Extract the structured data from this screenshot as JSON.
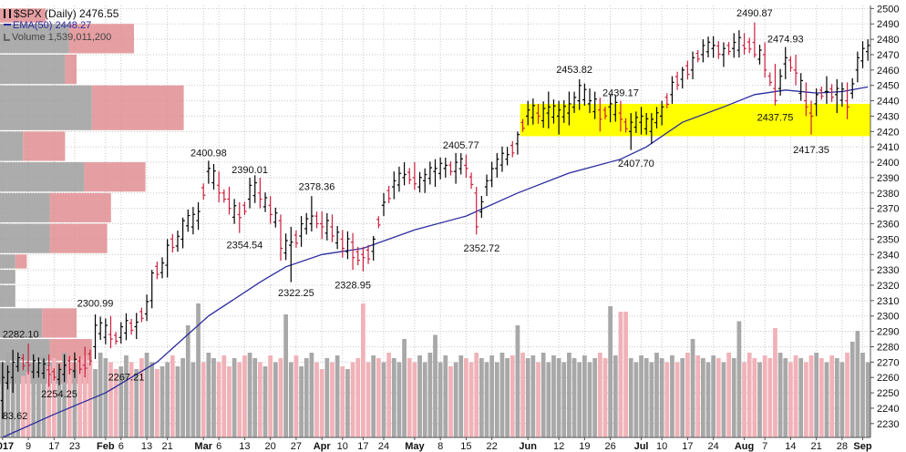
{
  "header": {
    "symbol_line": "$SPX (Daily) 2476.55",
    "ema_line": "EMA(50) 2448.27",
    "volume_line": "Volume 1,539,011,200"
  },
  "colors": {
    "up": "#000000",
    "down": "#cc1e3c",
    "ema": "#2b2b9f",
    "vol_up": "#a8a8a8",
    "vol_down": "#f0b2b8",
    "vbp_gray": "#9e9e9e",
    "vbp_red": "#e08e92",
    "highlight": "#ffff00",
    "grid": "#c8c8c8"
  },
  "chart_data": {
    "type": "candlestick",
    "title": "$SPX (Daily) 2476.55",
    "y_axis": {
      "side": "right",
      "ylim": [
        2221,
        2502
      ],
      "ticks": [
        2230,
        2240,
        2250,
        2260,
        2270,
        2280,
        2290,
        2300,
        2310,
        2320,
        2330,
        2340,
        2350,
        2360,
        2370,
        2380,
        2390,
        2400,
        2410,
        2420,
        2430,
        2440,
        2450,
        2460,
        2470,
        2480,
        2490,
        2500
      ]
    },
    "x_axis": {
      "tick_labels": [
        {
          "label": "2017",
          "i": 0,
          "month": true
        },
        {
          "label": "9",
          "i": 5,
          "month": false
        },
        {
          "label": "17",
          "i": 10,
          "month": false
        },
        {
          "label": "23",
          "i": 14,
          "month": false
        },
        {
          "label": "Feb",
          "i": 20,
          "month": true
        },
        {
          "label": "6",
          "i": 23,
          "month": false
        },
        {
          "label": "13",
          "i": 28,
          "month": false
        },
        {
          "label": "21",
          "i": 32,
          "month": false
        },
        {
          "label": "Mar",
          "i": 39,
          "month": true
        },
        {
          "label": "6",
          "i": 42,
          "month": false
        },
        {
          "label": "13",
          "i": 47,
          "month": false
        },
        {
          "label": "20",
          "i": 52,
          "month": false
        },
        {
          "label": "27",
          "i": 57,
          "month": false
        },
        {
          "label": "Apr",
          "i": 62,
          "month": true
        },
        {
          "label": "10",
          "i": 66,
          "month": false
        },
        {
          "label": "17",
          "i": 70,
          "month": false
        },
        {
          "label": "24",
          "i": 74,
          "month": false
        },
        {
          "label": "May",
          "i": 80,
          "month": true
        },
        {
          "label": "8",
          "i": 85,
          "month": false
        },
        {
          "label": "15",
          "i": 90,
          "month": false
        },
        {
          "label": "22",
          "i": 95,
          "month": false
        },
        {
          "label": "Jun",
          "i": 102,
          "month": true
        },
        {
          "label": "12",
          "i": 108,
          "month": false
        },
        {
          "label": "19",
          "i": 113,
          "month": false
        },
        {
          "label": "26",
          "i": 118,
          "month": false
        },
        {
          "label": "Jul",
          "i": 124,
          "month": true
        },
        {
          "label": "10",
          "i": 128,
          "month": false
        },
        {
          "label": "17",
          "i": 133,
          "month": false
        },
        {
          "label": "24",
          "i": 138,
          "month": false
        },
        {
          "label": "Aug",
          "i": 144,
          "month": true
        },
        {
          "label": "7",
          "i": 148,
          "month": false
        },
        {
          "label": "14",
          "i": 153,
          "month": false
        },
        {
          "label": "21",
          "i": 158,
          "month": false
        },
        {
          "label": "28",
          "i": 163,
          "month": false
        },
        {
          "label": "Sep",
          "i": 167,
          "month": true
        }
      ]
    },
    "bars_count": 169,
    "anchors": [
      [
        0,
        2245,
        2270,
        2233,
        2260
      ],
      [
        2,
        2260,
        2278,
        2250,
        2270
      ],
      [
        5,
        2270,
        2282,
        2262,
        2268
      ],
      [
        9,
        2265,
        2275,
        2254,
        2262
      ],
      [
        12,
        2262,
        2275,
        2257,
        2268
      ],
      [
        16,
        2268,
        2280,
        2260,
        2266
      ],
      [
        18,
        2280,
        2301,
        2272,
        2294
      ],
      [
        21,
        2288,
        2300,
        2279,
        2285
      ],
      [
        23,
        2286,
        2296,
        2282,
        2293
      ],
      [
        26,
        2293,
        2302,
        2285,
        2296
      ],
      [
        29,
        2310,
        2330,
        2305,
        2328
      ],
      [
        32,
        2333,
        2350,
        2325,
        2346
      ],
      [
        35,
        2350,
        2364,
        2344,
        2362
      ],
      [
        38,
        2362,
        2374,
        2356,
        2368
      ],
      [
        40,
        2394,
        2401,
        2386,
        2396
      ],
      [
        42,
        2385,
        2394,
        2374,
        2380
      ],
      [
        44,
        2376,
        2384,
        2366,
        2370
      ],
      [
        46,
        2366,
        2374,
        2354,
        2364
      ],
      [
        48,
        2376,
        2390,
        2370,
        2385
      ],
      [
        50,
        2380,
        2390,
        2370,
        2376
      ],
      [
        52,
        2372,
        2378,
        2360,
        2366
      ],
      [
        54,
        2362,
        2366,
        2336,
        2344
      ],
      [
        56,
        2346,
        2358,
        2322,
        2348
      ],
      [
        58,
        2352,
        2365,
        2345,
        2360
      ],
      [
        60,
        2360,
        2378,
        2355,
        2365
      ],
      [
        62,
        2360,
        2368,
        2350,
        2358
      ],
      [
        64,
        2358,
        2366,
        2348,
        2352
      ],
      [
        66,
        2350,
        2356,
        2338,
        2344
      ],
      [
        68,
        2348,
        2354,
        2330,
        2338
      ],
      [
        70,
        2340,
        2345,
        2329,
        2338
      ],
      [
        72,
        2342,
        2352,
        2336,
        2350
      ],
      [
        74,
        2372,
        2380,
        2365,
        2374
      ],
      [
        76,
        2384,
        2394,
        2376,
        2388
      ],
      [
        78,
        2390,
        2400,
        2385,
        2392
      ],
      [
        80,
        2390,
        2400,
        2382,
        2386
      ],
      [
        82,
        2388,
        2396,
        2380,
        2392
      ],
      [
        84,
        2394,
        2402,
        2384,
        2396
      ],
      [
        86,
        2396,
        2403,
        2390,
        2398
      ],
      [
        88,
        2394,
        2406,
        2386,
        2400
      ],
      [
        90,
        2398,
        2405,
        2390,
        2396
      ],
      [
        92,
        2380,
        2384,
        2353,
        2358
      ],
      [
        94,
        2384,
        2392,
        2378,
        2388
      ],
      [
        96,
        2396,
        2406,
        2390,
        2402
      ],
      [
        98,
        2402,
        2410,
        2398,
        2405
      ],
      [
        100,
        2412,
        2420,
        2405,
        2418
      ],
      [
        102,
        2430,
        2440,
        2424,
        2434
      ],
      [
        104,
        2432,
        2438,
        2425,
        2430
      ],
      [
        106,
        2432,
        2446,
        2422,
        2436
      ],
      [
        108,
        2430,
        2440,
        2418,
        2434
      ],
      [
        110,
        2432,
        2446,
        2424,
        2438
      ],
      [
        112,
        2440,
        2454,
        2434,
        2450
      ],
      [
        114,
        2438,
        2448,
        2432,
        2440
      ],
      [
        116,
        2434,
        2442,
        2420,
        2428
      ],
      [
        118,
        2436,
        2444,
        2426,
        2438
      ],
      [
        120,
        2432,
        2440,
        2420,
        2428
      ],
      [
        122,
        2420,
        2432,
        2408,
        2426
      ],
      [
        124,
        2426,
        2436,
        2418,
        2430
      ],
      [
        126,
        2420,
        2432,
        2412,
        2428
      ],
      [
        128,
        2430,
        2440,
        2424,
        2436
      ],
      [
        130,
        2444,
        2456,
        2438,
        2452
      ],
      [
        132,
        2454,
        2462,
        2448,
        2460
      ],
      [
        134,
        2460,
        2472,
        2454,
        2468
      ],
      [
        136,
        2470,
        2480,
        2465,
        2476
      ],
      [
        138,
        2474,
        2482,
        2468,
        2476
      ],
      [
        140,
        2470,
        2478,
        2462,
        2474
      ],
      [
        142,
        2474,
        2484,
        2468,
        2478
      ],
      [
        144,
        2476,
        2484,
        2470,
        2474
      ],
      [
        146,
        2478,
        2491,
        2468,
        2470
      ],
      [
        148,
        2470,
        2478,
        2455,
        2460
      ],
      [
        150,
        2448,
        2464,
        2437,
        2440
      ],
      [
        152,
        2464,
        2475,
        2454,
        2468
      ],
      [
        154,
        2460,
        2470,
        2450,
        2458
      ],
      [
        156,
        2440,
        2452,
        2430,
        2436
      ],
      [
        157,
        2432,
        2440,
        2418,
        2430
      ],
      [
        158,
        2438,
        2448,
        2430,
        2444
      ],
      [
        160,
        2446,
        2456,
        2438,
        2446
      ],
      [
        162,
        2444,
        2454,
        2432,
        2448
      ],
      [
        164,
        2440,
        2452,
        2428,
        2436
      ],
      [
        166,
        2460,
        2472,
        2452,
        2468
      ],
      [
        168,
        2472,
        2480,
        2466,
        2476
      ]
    ],
    "ema": [
      [
        0,
        2221
      ],
      [
        10,
        2236
      ],
      [
        20,
        2250
      ],
      [
        30,
        2270
      ],
      [
        40,
        2300
      ],
      [
        50,
        2322
      ],
      [
        55,
        2332
      ],
      [
        62,
        2340
      ],
      [
        70,
        2344
      ],
      [
        80,
        2356
      ],
      [
        90,
        2365
      ],
      [
        100,
        2380
      ],
      [
        110,
        2393
      ],
      [
        120,
        2402
      ],
      [
        125,
        2410
      ],
      [
        132,
        2426
      ],
      [
        140,
        2436
      ],
      [
        146,
        2444
      ],
      [
        152,
        2447
      ],
      [
        158,
        2445
      ],
      [
        163,
        2446
      ],
      [
        168,
        2449
      ]
    ],
    "volume": {
      "values": [
        0.55,
        0.62,
        0.5,
        0.58,
        0.45,
        0.48,
        0.55,
        0.5,
        0.6,
        0.52,
        0.58,
        0.5,
        0.62,
        0.55,
        0.5,
        0.58,
        0.6,
        0.55,
        0.5,
        0.62,
        0.58,
        0.55,
        0.5,
        0.52,
        0.6,
        0.55,
        0.5,
        0.58,
        0.62,
        0.55,
        0.5,
        0.52,
        0.55,
        0.6,
        0.52,
        0.58,
        0.6,
        0.55,
        0.5,
        0.55,
        0.62,
        0.58,
        0.55,
        0.6,
        0.52,
        0.58,
        0.55,
        0.6,
        0.62,
        0.58,
        0.55,
        0.52,
        0.6,
        0.55,
        0.58,
        0.5,
        0.55,
        0.6,
        0.52,
        0.58,
        0.62,
        0.55,
        0.5,
        0.58,
        0.55,
        0.6,
        0.52,
        0.5,
        0.55,
        0.58,
        0.52,
        0.55,
        0.6,
        0.58,
        0.55,
        0.62,
        0.58,
        0.55,
        0.72,
        0.58,
        0.55,
        0.6,
        0.55,
        0.62,
        0.58,
        0.55,
        0.6,
        0.52,
        0.55,
        0.6,
        0.58,
        0.55,
        0.62,
        0.58,
        0.55,
        0.6,
        0.55,
        0.62,
        0.58,
        0.6,
        0.55,
        0.62,
        0.58,
        0.6,
        0.55,
        0.62,
        0.55,
        0.6,
        0.58,
        0.55,
        0.62,
        0.58,
        0.55,
        0.6,
        0.55,
        0.58,
        0.62,
        0.58,
        0.55,
        0.6,
        0.92,
        0.65,
        0.58,
        0.55,
        0.6,
        0.58,
        0.55,
        0.62,
        0.58,
        0.55,
        0.6,
        0.55,
        0.58,
        0.62,
        0.55,
        0.6,
        0.58,
        0.55,
        0.6,
        0.58,
        0.55,
        0.62,
        0.58,
        0.6,
        0.55,
        0.62,
        0.58,
        0.55,
        0.6,
        0.58,
        0.8,
        0.62,
        0.58,
        0.55,
        0.6,
        0.58,
        0.55,
        0.6,
        0.62,
        0.58,
        0.55,
        0.6,
        0.58,
        0.55,
        0.62,
        0.7,
        0.58,
        0.62,
        0.55
      ],
      "spikes": [
        [
          36,
          0.82
        ],
        [
          38,
          0.98
        ],
        [
          55,
          0.9
        ],
        [
          70,
          0.98
        ],
        [
          84,
          0.75
        ],
        [
          100,
          0.82
        ],
        [
          118,
          0.96
        ],
        [
          121,
          0.92
        ],
        [
          134,
          0.72
        ],
        [
          143,
          0.85
        ],
        [
          166,
          0.78
        ]
      ]
    },
    "volume_by_price": [
      {
        "low": 2490,
        "high": 2500,
        "gray": 0.0,
        "red": 0.12
      },
      {
        "low": 2470,
        "high": 2490,
        "gray": 0.18,
        "red": 0.17
      },
      {
        "low": 2450,
        "high": 2470,
        "gray": 0.17,
        "red": 0.03
      },
      {
        "low": 2420,
        "high": 2450,
        "gray": 0.24,
        "red": 0.24
      },
      {
        "low": 2400,
        "high": 2420,
        "gray": 0.06,
        "red": 0.11
      },
      {
        "low": 2380,
        "high": 2400,
        "gray": 0.22,
        "red": 0.16
      },
      {
        "low": 2360,
        "high": 2380,
        "gray": 0.13,
        "red": 0.16
      },
      {
        "low": 2340,
        "high": 2360,
        "gray": 0.13,
        "red": 0.15
      },
      {
        "low": 2330,
        "high": 2340,
        "gray": 0.04,
        "red": 0.03
      },
      {
        "low": 2320,
        "high": 2330,
        "gray": 0.04,
        "red": 0.0
      },
      {
        "low": 2305,
        "high": 2320,
        "gray": 0.04,
        "red": 0.0
      },
      {
        "low": 2285,
        "high": 2305,
        "gray": 0.11,
        "red": 0.09
      },
      {
        "low": 2270,
        "high": 2285,
        "gray": 0.13,
        "red": 0.11
      },
      {
        "low": 2255,
        "high": 2270,
        "gray": 0.15,
        "red": 0.09
      }
    ],
    "highlight_zone": {
      "low": 2417,
      "high": 2438,
      "i_start": 101,
      "i_end": 168
    },
    "annotations": [
      {
        "text": "2282.10",
        "i": 0,
        "price": 2286,
        "align": "start"
      },
      {
        "text": "2300.99",
        "i": 18,
        "price": 2306,
        "align": "middle"
      },
      {
        "text": "2267.21",
        "i": 24,
        "price": 2258,
        "align": "middle"
      },
      {
        "text": "2254.25",
        "i": 11,
        "price": 2247,
        "align": "middle"
      },
      {
        "text": "83.62",
        "i": 0,
        "price": 2233,
        "align": "start"
      },
      {
        "text": "2400.98",
        "i": 40,
        "price": 2404,
        "align": "middle"
      },
      {
        "text": "2390.01",
        "i": 48,
        "price": 2393,
        "align": "middle"
      },
      {
        "text": "2378.36",
        "i": 61,
        "price": 2382,
        "align": "middle"
      },
      {
        "text": "2354.54",
        "i": 47,
        "price": 2344,
        "align": "middle"
      },
      {
        "text": "2322.25",
        "i": 57,
        "price": 2313,
        "align": "middle"
      },
      {
        "text": "2328.95",
        "i": 68,
        "price": 2318,
        "align": "middle"
      },
      {
        "text": "2405.77",
        "i": 89,
        "price": 2409,
        "align": "middle"
      },
      {
        "text": "2352.72",
        "i": 93,
        "price": 2342,
        "align": "middle"
      },
      {
        "text": "2453.82",
        "i": 111,
        "price": 2458,
        "align": "middle"
      },
      {
        "text": "2439.17",
        "i": 120,
        "price": 2443,
        "align": "middle"
      },
      {
        "text": "2407.70",
        "i": 123,
        "price": 2397,
        "align": "middle"
      },
      {
        "text": "2490.87",
        "i": 146,
        "price": 2495,
        "align": "middle"
      },
      {
        "text": "2474.93",
        "i": 152,
        "price": 2478,
        "align": "middle"
      },
      {
        "text": "2437.75",
        "i": 150,
        "price": 2427,
        "align": "middle"
      },
      {
        "text": "2417.35",
        "i": 157,
        "price": 2406,
        "align": "middle"
      }
    ]
  }
}
